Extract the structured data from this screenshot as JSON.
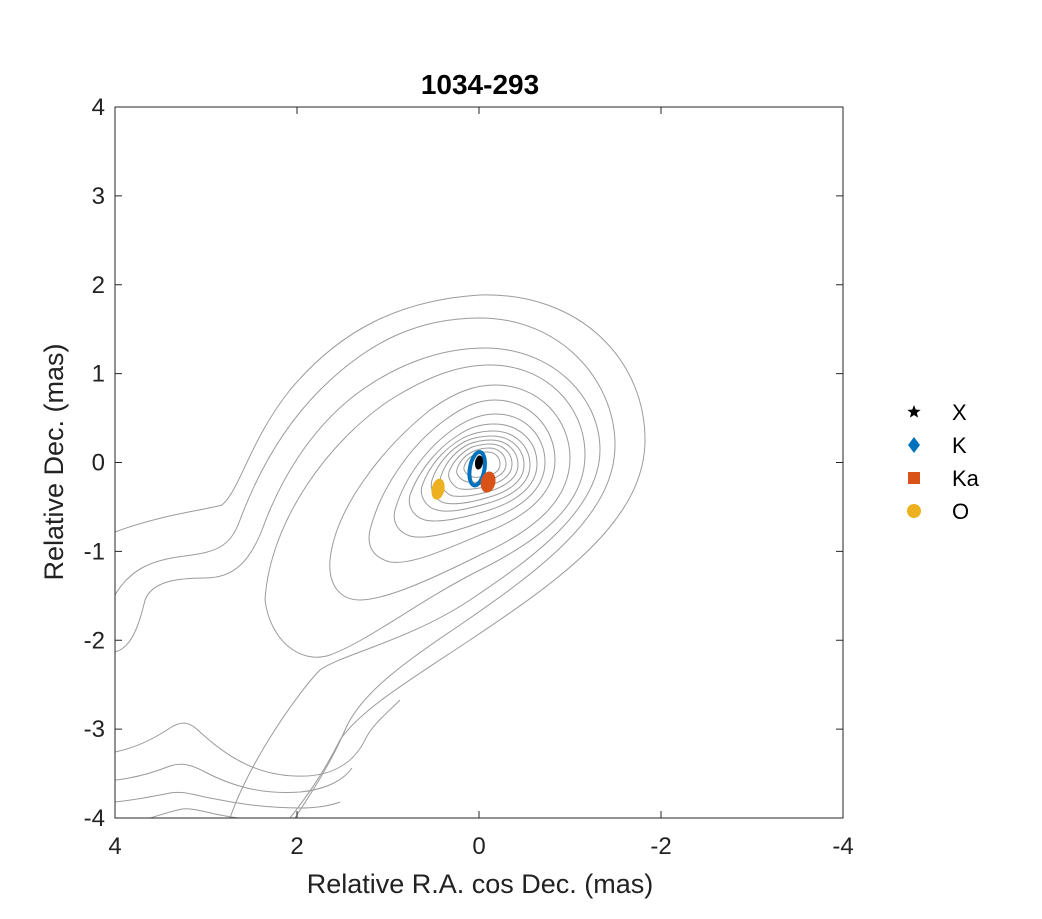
{
  "chart_data": {
    "type": "scatter",
    "title": "1034-293",
    "xlabel": "Relative R.A. cos Dec. (mas)",
    "ylabel": "Relative Dec. (mas)",
    "xlim": [
      4,
      -4
    ],
    "ylim": [
      -4,
      4
    ],
    "x_reversed": true,
    "xticks": [
      4,
      2,
      0,
      -2,
      -4
    ],
    "yticks": [
      4,
      3,
      2,
      1,
      0,
      -1,
      -2,
      -3,
      -4
    ],
    "legend_position": "right",
    "contour_color": "#9b9b9b",
    "series": [
      {
        "name": "X",
        "marker": "star",
        "color": "#000000",
        "x": 0.0,
        "y": 0.0,
        "sigma_x": 0.03,
        "sigma_y": 0.08
      },
      {
        "name": "K",
        "marker": "diamond",
        "color": "#0072BD",
        "x": 0.02,
        "y": -0.07,
        "sigma_x": 0.08,
        "sigma_y": 0.19
      },
      {
        "name": "Ka",
        "marker": "square",
        "color": "#D95319",
        "x": -0.1,
        "y": -0.22,
        "sigma_x": 0.08,
        "sigma_y": 0.12
      },
      {
        "name": "O",
        "marker": "circle",
        "color": "#EDB120",
        "x": 0.45,
        "y": -0.3,
        "sigma_x": 0.07,
        "sigma_y": 0.12
      }
    ]
  }
}
